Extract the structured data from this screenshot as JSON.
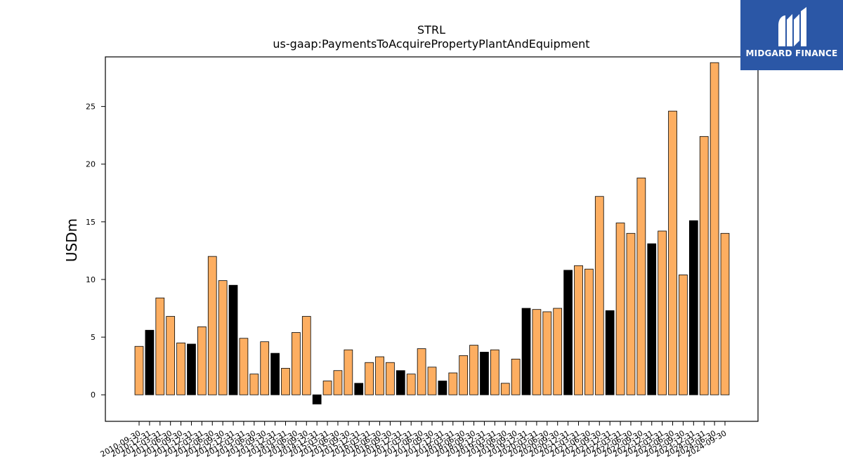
{
  "chart_data": {
    "type": "bar",
    "title": "STRL",
    "subtitle": "us-gaap:PaymentsToAcquirePropertyPlantAndEquipment",
    "xlabel": "",
    "ylabel": "USDm",
    "ylim": [
      -2.3,
      29.3
    ],
    "yticks": [
      0,
      5,
      10,
      15,
      20,
      25
    ],
    "grid": false,
    "colors": {
      "quarter": "#fdae61",
      "fiscal_year_end": "#000000",
      "edge": "#000000"
    },
    "categories": [
      "2010-09-30",
      "2010-12-31",
      "2011-03-31",
      "2011-06-30",
      "2011-09-30",
      "2011-12-31",
      "2012-03-31",
      "2012-06-30",
      "2012-09-30",
      "2012-12-31",
      "2013-03-31",
      "2013-06-30",
      "2013-09-30",
      "2013-12-31",
      "2014-03-31",
      "2014-06-30",
      "2014-09-30",
      "2014-12-31",
      "2015-03-31",
      "2015-06-30",
      "2015-09-30",
      "2015-12-31",
      "2016-03-31",
      "2016-06-30",
      "2016-09-30",
      "2016-12-31",
      "2017-03-31",
      "2017-06-30",
      "2017-09-30",
      "2017-12-31",
      "2018-03-31",
      "2018-06-30",
      "2018-09-30",
      "2018-12-31",
      "2019-03-31",
      "2019-06-30",
      "2019-09-30",
      "2019-12-31",
      "2020-03-31",
      "2020-06-30",
      "2020-09-30",
      "2020-12-31",
      "2021-03-31",
      "2021-06-30",
      "2021-09-30",
      "2021-12-31",
      "2022-03-31",
      "2022-06-30",
      "2022-09-30",
      "2022-12-31",
      "2023-03-31",
      "2023-06-30",
      "2023-09-30",
      "2023-12-31",
      "2024-03-31",
      "2024-06-30",
      "2024-09-30"
    ],
    "values": [
      4.2,
      5.6,
      8.4,
      6.8,
      4.5,
      4.4,
      5.9,
      12.0,
      9.9,
      9.5,
      4.9,
      1.8,
      4.6,
      3.6,
      2.3,
      5.4,
      6.8,
      -0.8,
      1.2,
      2.1,
      3.9,
      1.0,
      2.8,
      3.3,
      2.8,
      2.1,
      1.8,
      4.0,
      2.4,
      1.2,
      1.9,
      3.4,
      4.3,
      3.7,
      3.9,
      1.0,
      3.1,
      7.5,
      7.4,
      7.2,
      7.5,
      10.8,
      11.2,
      10.9,
      17.2,
      7.3,
      14.9,
      14.0,
      18.8,
      13.1,
      14.2,
      24.6,
      10.4,
      15.1,
      22.4,
      28.8,
      14.0
    ],
    "highlight": [
      false,
      true,
      false,
      false,
      false,
      true,
      false,
      false,
      false,
      true,
      false,
      false,
      false,
      true,
      false,
      false,
      false,
      true,
      false,
      false,
      false,
      true,
      false,
      false,
      false,
      true,
      false,
      false,
      false,
      true,
      false,
      false,
      false,
      true,
      false,
      false,
      false,
      true,
      false,
      false,
      false,
      true,
      false,
      false,
      false,
      true,
      false,
      false,
      false,
      true,
      false,
      false,
      false,
      true,
      false,
      false,
      false
    ]
  },
  "logo": {
    "text": "MIDGARD FINANCE",
    "icon": "midgard-logo-icon",
    "background": "#2b57a6"
  }
}
